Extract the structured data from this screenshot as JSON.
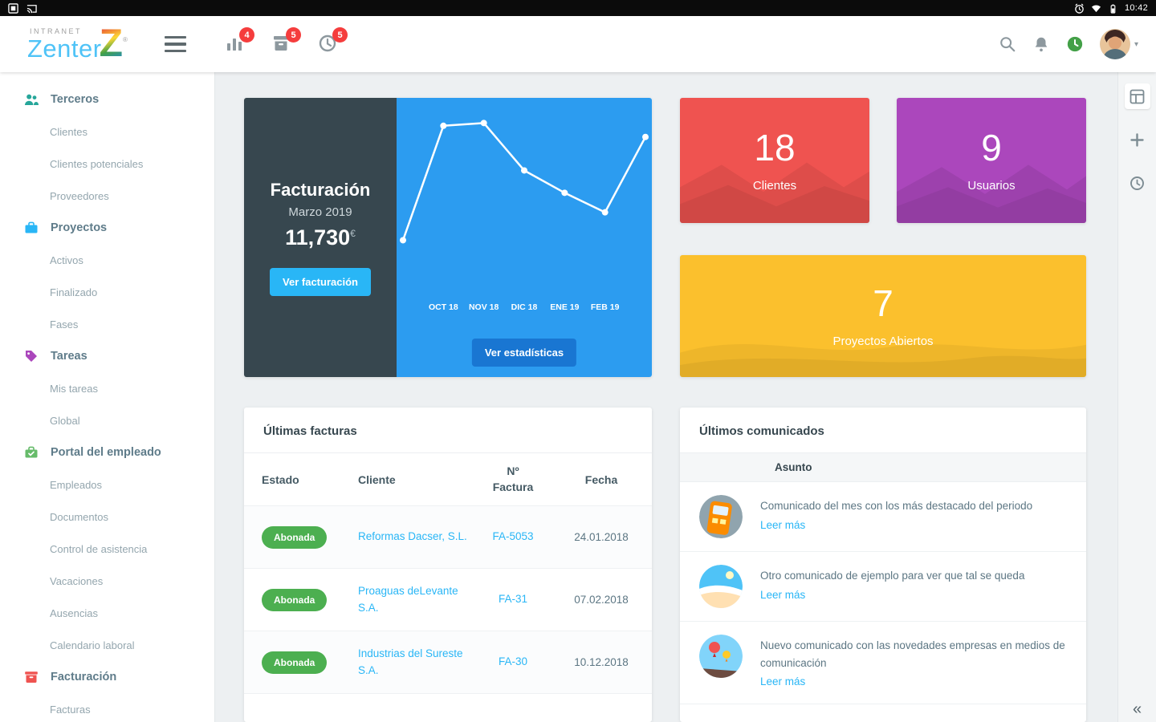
{
  "status_bar": {
    "time": "10:42"
  },
  "header": {
    "brand": {
      "top": "INTRANET",
      "name": "Zenter",
      "z": "Z",
      "reg": "®"
    },
    "notifications": [
      {
        "icon": "bar-chart",
        "count": "4"
      },
      {
        "icon": "archive-box",
        "count": "5"
      },
      {
        "icon": "clock",
        "count": "5"
      }
    ]
  },
  "sidebar": {
    "sections": [
      {
        "label": "Terceros",
        "color": "#26a69a",
        "items": [
          "Clientes",
          "Clientes potenciales",
          "Proveedores"
        ]
      },
      {
        "label": "Proyectos",
        "color": "#29b6f6",
        "items": [
          "Activos",
          "Finalizado",
          "Fases"
        ]
      },
      {
        "label": "Tareas",
        "color": "#ab47bc",
        "items": [
          "Mis tareas",
          "Global"
        ]
      },
      {
        "label": "Portal del empleado",
        "color": "#66bb6a",
        "items": [
          "Empleados",
          "Documentos",
          "Control de asistencia",
          "Vacaciones",
          "Ausencias",
          "Calendario laboral"
        ]
      },
      {
        "label": "Facturación",
        "color": "#ef5350",
        "items": [
          "Facturas"
        ]
      }
    ]
  },
  "billing": {
    "title": "Facturación",
    "subtitle": "Marzo 2019",
    "amount": "11,730",
    "currency": "€",
    "view_button": "Ver facturación",
    "stats_button": "Ver estadísticas"
  },
  "chart_data": {
    "type": "line",
    "points": [
      {
        "label": "",
        "value": 49
      },
      {
        "label": "OCT 18",
        "value": 90
      },
      {
        "label": "NOV 18",
        "value": 91
      },
      {
        "label": "DIC 18",
        "value": 74
      },
      {
        "label": "ENE 19",
        "value": 66
      },
      {
        "label": "FEB 19",
        "value": 59
      },
      {
        "label": "",
        "value": 86
      }
    ],
    "ylim": [
      0,
      100
    ],
    "line_color": "#ffffff",
    "background": "#2c9cf0",
    "grid": false,
    "legend": "none"
  },
  "stats": [
    {
      "value": "18",
      "label": "Clientes",
      "color": "#ef5350"
    },
    {
      "value": "9",
      "label": "Usuarios",
      "color": "#ab47bc"
    },
    {
      "value": "7",
      "label": "Proyectos Abiertos",
      "color": "#fbc02d"
    }
  ],
  "invoices": {
    "title": "Últimas facturas",
    "columns": [
      "Estado",
      "Cliente",
      "Nº Factura",
      "Fecha"
    ],
    "status_color": "#4caf50",
    "rows": [
      {
        "estado": "Abonada",
        "cliente": "Reformas Dacser, S.L.",
        "numero": "FA-5053",
        "fecha": "24.01.2018"
      },
      {
        "estado": "Abonada",
        "cliente": "Proaguas deLevante S.A.",
        "numero": "FA-31",
        "fecha": "07.02.2018"
      },
      {
        "estado": "Abonada",
        "cliente": "Industrias del Sureste S.A.",
        "numero": "FA-30",
        "fecha": "10.12.2018"
      }
    ]
  },
  "communications": {
    "title": "Últimos comunicados",
    "column": "Asunto",
    "read_more": "Leer más",
    "items": [
      {
        "text": "Comunicado del mes con los más destacado del periodo"
      },
      {
        "text": "Otro comunicado de ejemplo para ver que tal se queda"
      },
      {
        "text": "Nuevo comunicado con las novedades empresas en medios de comunicación"
      }
    ]
  },
  "rail": {
    "collapse": "«"
  }
}
